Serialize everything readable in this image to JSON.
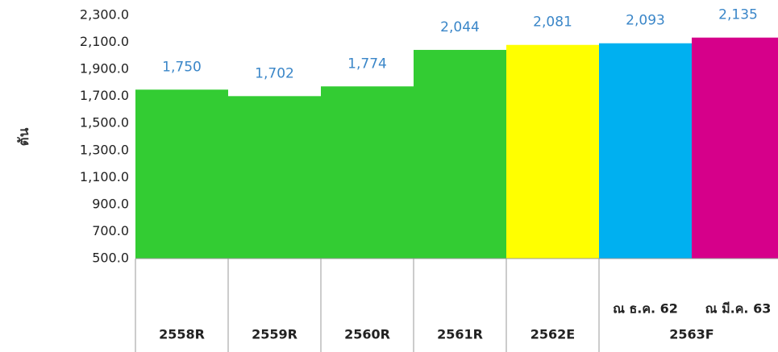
{
  "chart_data": {
    "type": "bar",
    "y_label": "ตัน",
    "categories": [
      "2558R",
      "2559R",
      "2560R",
      "2561R",
      "2562E",
      "2563F"
    ],
    "sublabels": [
      null,
      null,
      null,
      null,
      null,
      [
        "ณ ธ.ค. 62",
        "ณ มี.ค. 63"
      ]
    ],
    "values": [
      1750,
      1702,
      1774,
      2044,
      2081,
      [
        2093,
        2135
      ]
    ],
    "value_labels": [
      "1,750",
      "1,702",
      "1,774",
      "2,044",
      "2,081",
      [
        "2,093",
        "2,135"
      ]
    ],
    "colors": [
      "#33cc33",
      "#33cc33",
      "#33cc33",
      "#33cc33",
      "#ffff00",
      [
        "#00b0f0",
        "#d6008a"
      ]
    ],
    "ylim": [
      500,
      2300
    ],
    "yticks": [
      {
        "value": 500,
        "label": "500.0"
      },
      {
        "value": 700,
        "label": "700.0"
      },
      {
        "value": 900,
        "label": "900.0"
      },
      {
        "value": 1100,
        "label": "1,100.0"
      },
      {
        "value": 1300,
        "label": "1,300.0"
      },
      {
        "value": 1500,
        "label": "1,500.0"
      },
      {
        "value": 1700,
        "label": "1,700.0"
      },
      {
        "value": 1900,
        "label": "1,900.0"
      },
      {
        "value": 2100,
        "label": "2,100.0"
      },
      {
        "value": 2300,
        "label": "2,300.0"
      }
    ],
    "grid": false
  }
}
